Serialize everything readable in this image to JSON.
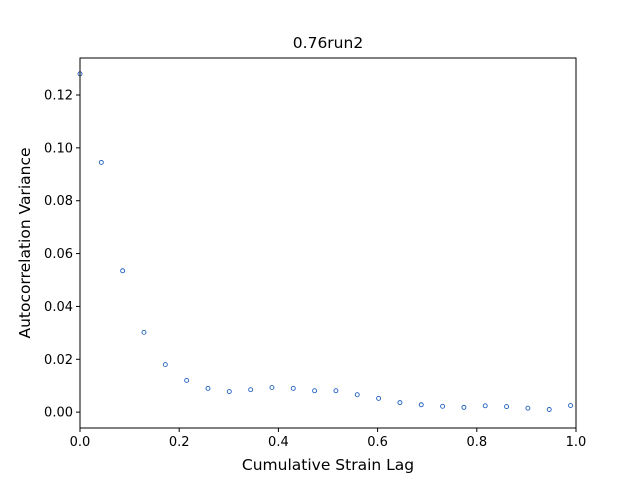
{
  "chart_data": {
    "type": "scatter",
    "title": "0.76run2",
    "xlabel": "Cumulative Strain Lag",
    "ylabel": "Autocorrelation Variance",
    "xlim": [
      0.0,
      1.0
    ],
    "ylim": [
      -0.006,
      0.134
    ],
    "grid": false,
    "x_ticks": [
      0.0,
      0.2,
      0.4,
      0.6,
      0.8,
      1.0
    ],
    "x_tick_labels": [
      "0.0",
      "0.2",
      "0.4",
      "0.6",
      "0.8",
      "1.0"
    ],
    "y_ticks": [
      0.0,
      0.02,
      0.04,
      0.06,
      0.08,
      0.1,
      0.12
    ],
    "y_tick_labels": [
      "0.00",
      "0.02",
      "0.04",
      "0.06",
      "0.08",
      "0.10",
      "0.12"
    ],
    "series": [
      {
        "name": "autocorrelation variance",
        "marker": "open-circle",
        "color": "#1f5fbf",
        "x": [
          0.0,
          0.043,
          0.086,
          0.129,
          0.172,
          0.215,
          0.258,
          0.301,
          0.344,
          0.387,
          0.43,
          0.473,
          0.516,
          0.559,
          0.602,
          0.645,
          0.688,
          0.731,
          0.774,
          0.817,
          0.86,
          0.903,
          0.946,
          0.989
        ],
        "y": [
          0.128,
          0.0945,
          0.0535,
          0.0302,
          0.018,
          0.012,
          0.009,
          0.0078,
          0.0085,
          0.0093,
          0.009,
          0.0081,
          0.0081,
          0.0066,
          0.0052,
          0.0036,
          0.0028,
          0.0022,
          0.0018,
          0.0024,
          0.0021,
          0.0015,
          0.001,
          0.0025
        ]
      }
    ]
  }
}
